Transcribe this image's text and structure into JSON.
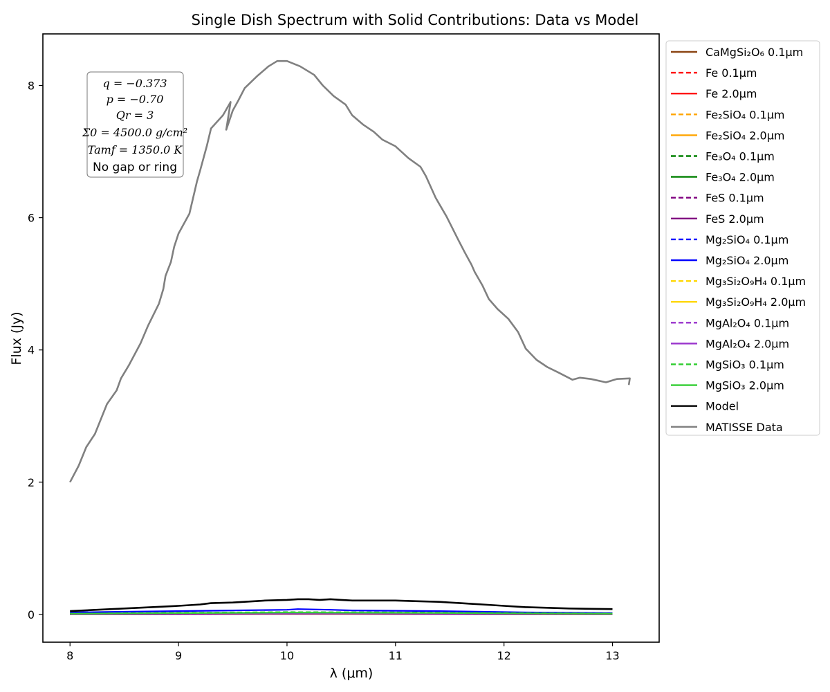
{
  "chart_data": {
    "type": "line",
    "title": "Single Dish Spectrum with Solid Contributions: Data vs Model",
    "xlabel": "λ (μm)",
    "ylabel": "Flux (Jy)",
    "xlim": [
      7.75,
      13.43
    ],
    "ylim": [
      -0.42,
      8.78
    ],
    "xticks": [
      8,
      9,
      10,
      11,
      12,
      13
    ],
    "yticks": [
      0,
      2,
      4,
      6,
      8
    ],
    "xtick_labels": [
      "8",
      "9",
      "10",
      "11",
      "12",
      "13"
    ],
    "ytick_labels": [
      "0",
      "2",
      "4",
      "6",
      "8"
    ],
    "grid": false,
    "legend_position": "outside-right",
    "annotation": {
      "lines": [
        "q = −0.373",
        "p = −0.70",
        "Qr = 3",
        "Σ0 = 4500.0 g/cm²",
        "Tamf = 1350.0 K",
        "No gap or ring"
      ]
    },
    "series": [
      {
        "name": "CaMgSi₂O₆ 0.1μm",
        "color": "#8B4513",
        "dash": false,
        "x": [
          8.0,
          9.0,
          10.0,
          11.0,
          12.0,
          13.0
        ],
        "y": [
          0.0,
          0.002,
          0.004,
          0.003,
          0.002,
          0.001
        ]
      },
      {
        "name": "Fe 0.1μm",
        "color": "#ff0000",
        "dash": true,
        "x": [
          8.0,
          9.0,
          10.0,
          11.0,
          12.0,
          13.0
        ],
        "y": [
          0.003,
          0.006,
          0.008,
          0.007,
          0.005,
          0.004
        ]
      },
      {
        "name": "Fe 2.0μm",
        "color": "#ff0000",
        "dash": false,
        "x": [
          8.0,
          9.0,
          10.0,
          11.0,
          12.0,
          13.0
        ],
        "y": [
          0.002,
          0.004,
          0.006,
          0.005,
          0.004,
          0.003
        ]
      },
      {
        "name": "Fe₂SiO₄ 0.1μm",
        "color": "#ffa500",
        "dash": true,
        "x": [
          8.0,
          9.0,
          10.0,
          11.0,
          12.0,
          13.0
        ],
        "y": [
          0.002,
          0.006,
          0.012,
          0.01,
          0.005,
          0.003
        ]
      },
      {
        "name": "Fe₂SiO₄ 2.0μm",
        "color": "#ffa500",
        "dash": false,
        "x": [
          8.0,
          9.0,
          10.0,
          11.0,
          12.0,
          13.0
        ],
        "y": [
          0.002,
          0.005,
          0.01,
          0.008,
          0.004,
          0.002
        ]
      },
      {
        "name": "Fe₃O₄ 0.1μm",
        "color": "#008000",
        "dash": true,
        "x": [
          8.0,
          9.0,
          10.0,
          11.0,
          12.0,
          13.0
        ],
        "y": [
          0.004,
          0.008,
          0.01,
          0.009,
          0.007,
          0.005
        ]
      },
      {
        "name": "Fe₃O₄ 2.0μm",
        "color": "#008000",
        "dash": false,
        "x": [
          8.0,
          9.0,
          10.0,
          11.0,
          12.0,
          13.0
        ],
        "y": [
          0.003,
          0.006,
          0.008,
          0.007,
          0.006,
          0.004
        ]
      },
      {
        "name": "FeS 0.1μm",
        "color": "#800080",
        "dash": true,
        "x": [
          8.0,
          9.0,
          10.0,
          11.0,
          12.0,
          13.0
        ],
        "y": [
          0.002,
          0.004,
          0.005,
          0.005,
          0.004,
          0.003
        ]
      },
      {
        "name": "FeS 2.0μm",
        "color": "#800080",
        "dash": false,
        "x": [
          8.0,
          9.0,
          10.0,
          11.0,
          12.0,
          13.0
        ],
        "y": [
          0.001,
          0.003,
          0.004,
          0.004,
          0.003,
          0.002
        ]
      },
      {
        "name": "Mg₂SiO₄ 0.1μm",
        "color": "#0000ff",
        "dash": true,
        "x": [
          8.0,
          9.0,
          10.0,
          11.0,
          12.0,
          13.0
        ],
        "y": [
          0.01,
          0.02,
          0.03,
          0.03,
          0.02,
          0.012
        ]
      },
      {
        "name": "Mg₂SiO₄ 2.0μm",
        "color": "#0000ff",
        "dash": false,
        "x": [
          8.0,
          8.5,
          9.0,
          9.5,
          10.0,
          10.1,
          10.4,
          10.6,
          11.0,
          11.4,
          11.8,
          12.2,
          12.6,
          13.0
        ],
        "y": [
          0.03,
          0.04,
          0.05,
          0.06,
          0.07,
          0.08,
          0.07,
          0.06,
          0.055,
          0.05,
          0.04,
          0.03,
          0.025,
          0.02
        ]
      },
      {
        "name": "Mg₃Si₂O₉H₄ 0.1μm",
        "color": "#ffd700",
        "dash": true,
        "x": [
          8.0,
          9.0,
          10.0,
          11.0,
          12.0,
          13.0
        ],
        "y": [
          0.003,
          0.006,
          0.008,
          0.007,
          0.005,
          0.003
        ]
      },
      {
        "name": "Mg₃Si₂O₉H₄ 2.0μm",
        "color": "#ffd700",
        "dash": false,
        "x": [
          8.0,
          9.0,
          10.0,
          11.0,
          12.0,
          13.0
        ],
        "y": [
          0.002,
          0.005,
          0.006,
          0.005,
          0.004,
          0.002
        ]
      },
      {
        "name": "MgAl₂O₄ 0.1μm",
        "color": "#9932cc",
        "dash": true,
        "x": [
          8.0,
          9.0,
          10.0,
          11.0,
          12.0,
          13.0
        ],
        "y": [
          0.003,
          0.008,
          0.012,
          0.01,
          0.006,
          0.004
        ]
      },
      {
        "name": "MgAl₂O₄ 2.0μm",
        "color": "#9932cc",
        "dash": false,
        "x": [
          8.0,
          9.0,
          10.0,
          11.0,
          12.0,
          13.0
        ],
        "y": [
          0.002,
          0.006,
          0.009,
          0.008,
          0.005,
          0.003
        ]
      },
      {
        "name": "MgSiO₃ 0.1μm",
        "color": "#32cd32",
        "dash": true,
        "x": [
          8.0,
          9.0,
          10.0,
          11.0,
          12.0,
          13.0
        ],
        "y": [
          0.01,
          0.025,
          0.035,
          0.03,
          0.02,
          0.012
        ]
      },
      {
        "name": "MgSiO₃ 2.0μm",
        "color": "#32cd32",
        "dash": false,
        "x": [
          8.0,
          9.0,
          10.0,
          11.0,
          12.0,
          13.0
        ],
        "y": [
          0.01,
          0.02,
          0.028,
          0.025,
          0.016,
          0.01
        ]
      },
      {
        "name": "Model",
        "color": "#000000",
        "dash": false,
        "x": [
          8.0,
          8.25,
          8.5,
          8.75,
          9.0,
          9.2,
          9.3,
          9.5,
          9.7,
          9.8,
          10.0,
          10.1,
          10.2,
          10.3,
          10.4,
          10.5,
          10.6,
          10.8,
          11.0,
          11.2,
          11.4,
          11.5,
          11.6,
          11.7,
          11.8,
          11.9,
          12.0,
          12.2,
          12.4,
          12.6,
          12.8,
          13.0
        ],
        "y": [
          0.05,
          0.07,
          0.09,
          0.11,
          0.13,
          0.15,
          0.17,
          0.18,
          0.2,
          0.21,
          0.22,
          0.23,
          0.23,
          0.22,
          0.23,
          0.22,
          0.21,
          0.21,
          0.21,
          0.2,
          0.19,
          0.18,
          0.17,
          0.16,
          0.15,
          0.14,
          0.13,
          0.11,
          0.1,
          0.09,
          0.085,
          0.08
        ]
      },
      {
        "name": "MATISSE Data",
        "color": "#808080",
        "dash": false,
        "x": [
          8.0,
          8.08,
          8.15,
          8.23,
          8.34,
          8.43,
          8.47,
          8.54,
          8.65,
          8.72,
          8.82,
          8.86,
          8.88,
          8.93,
          8.96,
          9.0,
          9.1,
          9.17,
          9.2,
          9.26,
          9.3,
          9.41,
          9.48,
          9.44,
          9.5,
          9.55,
          9.61,
          9.73,
          9.83,
          9.91,
          10.0,
          10.12,
          10.25,
          10.33,
          10.43,
          10.54,
          10.6,
          10.7,
          10.8,
          10.88,
          11.0,
          11.12,
          11.23,
          11.28,
          11.37,
          11.47,
          11.58,
          11.64,
          11.7,
          11.73,
          11.8,
          11.86,
          11.94,
          12.04,
          12.13,
          12.2,
          12.3,
          12.4,
          12.5,
          12.63,
          12.7,
          12.8,
          12.94,
          13.04,
          13.16,
          13.15
        ],
        "y": [
          2.0,
          2.25,
          2.53,
          2.73,
          3.18,
          3.39,
          3.57,
          3.76,
          4.1,
          4.37,
          4.7,
          4.92,
          5.12,
          5.33,
          5.56,
          5.76,
          6.06,
          6.55,
          6.72,
          7.08,
          7.35,
          7.55,
          7.75,
          7.33,
          7.62,
          7.77,
          7.96,
          8.15,
          8.29,
          8.37,
          8.37,
          8.29,
          8.16,
          8.0,
          7.84,
          7.71,
          7.55,
          7.41,
          7.3,
          7.18,
          7.08,
          6.9,
          6.77,
          6.63,
          6.3,
          6.02,
          5.66,
          5.47,
          5.29,
          5.18,
          4.98,
          4.77,
          4.62,
          4.47,
          4.27,
          4.02,
          3.85,
          3.74,
          3.66,
          3.55,
          3.58,
          3.56,
          3.51,
          3.56,
          3.57,
          3.47
        ]
      }
    ]
  }
}
